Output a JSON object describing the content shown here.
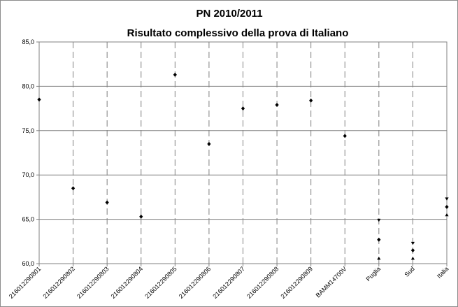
{
  "chart_data": {
    "type": "scatter",
    "title_line1": "PN 2010/2011",
    "title_line2": "Risultato complessivo della prova di Italiano",
    "xlabel": "",
    "ylabel": "",
    "ylim": [
      60,
      85
    ],
    "yticks": [
      "85,0",
      "80,0",
      "75,0",
      "70,0",
      "65,0",
      "60,0"
    ],
    "grid": true,
    "categories": [
      "216012290801",
      "216012290802",
      "216012290803",
      "216012290804",
      "216012290805",
      "216012290806",
      "216012290807",
      "216012290808",
      "216012290809",
      "BAMM14700V",
      "Puglia",
      "Sud",
      "Italia"
    ],
    "points": [
      {
        "category": 0,
        "y": 78.5,
        "marker": "diamond"
      },
      {
        "category": 1,
        "y": 68.5,
        "marker": "diamond"
      },
      {
        "category": 2,
        "y": 66.9,
        "marker": "diamond"
      },
      {
        "category": 3,
        "y": 65.3,
        "marker": "diamond"
      },
      {
        "category": 4,
        "y": 81.3,
        "marker": "diamond"
      },
      {
        "category": 5,
        "y": 73.5,
        "marker": "diamond"
      },
      {
        "category": 6,
        "y": 77.5,
        "marker": "diamond"
      },
      {
        "category": 7,
        "y": 77.9,
        "marker": "diamond"
      },
      {
        "category": 8,
        "y": 78.4,
        "marker": "diamond"
      },
      {
        "category": 9,
        "y": 74.4,
        "marker": "diamond"
      },
      {
        "category": 10,
        "y": 64.9,
        "marker": "triangle-down"
      },
      {
        "category": 10,
        "y": 62.7,
        "marker": "diamond"
      },
      {
        "category": 10,
        "y": 60.6,
        "marker": "triangle-up"
      },
      {
        "category": 11,
        "y": 62.3,
        "marker": "triangle-down"
      },
      {
        "category": 11,
        "y": 61.5,
        "marker": "diamond"
      },
      {
        "category": 11,
        "y": 60.6,
        "marker": "triangle-up"
      },
      {
        "category": 12,
        "y": 67.3,
        "marker": "triangle-down"
      },
      {
        "category": 12,
        "y": 66.4,
        "marker": "diamond"
      },
      {
        "category": 12,
        "y": 65.5,
        "marker": "triangle-up"
      }
    ]
  }
}
